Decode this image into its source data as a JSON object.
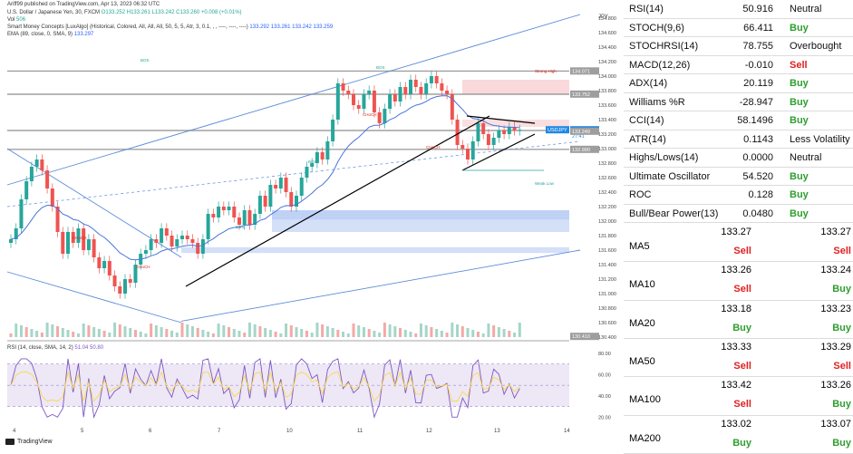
{
  "header": {
    "published": "Ariff99 published on TradingView.com, Apr 13, 2023 06:32 UTC",
    "symbol_line": "U.S. Dollar / Japanese Yen, 30, FXCM",
    "ohlc": "O133.252 H133.261 L133.242 C133.260 +0.008 (+0.01%)",
    "vol_label": "Vol",
    "vol_value": "506",
    "smc_line": "Smart Money Concepts [LuxAlgo] (Historical, Colored, All, All, All, 50, 5, 5, Atr, 3, 0.1, , , ----, ----, ----)",
    "smc_values": "133.292  133.261  133.242  133.259",
    "ema_line": "EMA (89, close, 0, SMA, 9)",
    "ema_value": "133.297",
    "rsi_line": "RSI (14, close, SMA, 14, 2)",
    "rsi_values": "51.04  50.80",
    "tv_logo": "TradingView",
    "currency": "JPY"
  },
  "chart_data": {
    "type": "candlestick",
    "symbol": "USDJPY",
    "timeframe": "30",
    "x_ticks": [
      "4",
      "5",
      "6",
      "7",
      "10",
      "11",
      "12",
      "13",
      "14"
    ],
    "y_ticks": [
      130.4,
      130.6,
      130.8,
      131.0,
      131.2,
      131.4,
      131.6,
      131.8,
      132.0,
      132.2,
      132.4,
      132.6,
      132.8,
      133.0,
      133.2,
      133.4,
      133.6,
      133.8,
      134.0,
      134.2,
      134.4,
      134.6,
      134.8
    ],
    "ylim": [
      130.4,
      134.9
    ],
    "price_labels": {
      "last_symbol": "USDJPY",
      "last": "133.260",
      "countdown": "27:41",
      "level_high": "134.071",
      "level_mid": "133.752",
      "level_low1": "133.249",
      "level_low2": "132.990",
      "bottom": "130.410"
    },
    "annotations": [
      "BOS",
      "BOS",
      "BOS",
      "BOS",
      "CHoCH",
      "CHoCH",
      "CHoCH",
      "CHoCH",
      "Strong High",
      "Weak Low"
    ],
    "closes": [
      131.75,
      131.9,
      132.3,
      132.55,
      132.75,
      132.85,
      132.7,
      132.45,
      132.2,
      131.85,
      131.55,
      131.85,
      131.7,
      131.9,
      131.6,
      131.75,
      131.5,
      131.35,
      131.45,
      131.25,
      131.1,
      131.0,
      131.2,
      131.15,
      131.4,
      131.55,
      131.6,
      131.75,
      131.7,
      131.9,
      131.8,
      131.65,
      131.75,
      131.8,
      131.75,
      131.7,
      131.55,
      131.75,
      132.1,
      132.05,
      132.2,
      132.15,
      132.2,
      132.05,
      131.95,
      132.15,
      131.95,
      132.1,
      132.35,
      132.2,
      132.5,
      132.45,
      132.6,
      132.4,
      132.2,
      132.35,
      132.6,
      132.75,
      132.8,
      132.95,
      132.85,
      133.1,
      133.4,
      133.9,
      133.8,
      133.75,
      133.6,
      133.55,
      133.75,
      133.8,
      133.5,
      133.35,
      133.55,
      133.75,
      133.65,
      133.85,
      133.75,
      133.95,
      133.85,
      133.75,
      133.9,
      134.0,
      133.9,
      133.8,
      133.75,
      133.4,
      133.05,
      133.0,
      132.85,
      133.1,
      133.35,
      133.2,
      133.05,
      133.15,
      133.25,
      133.2,
      133.3,
      133.25,
      133.26
    ],
    "indicators": [
      {
        "name": "RSI (14, close, SMA, 14, 2)",
        "ylim": [
          10,
          80
        ],
        "y_ticks": [
          20,
          40,
          60,
          80
        ]
      }
    ]
  },
  "indicators": [
    {
      "name": "RSI(14)",
      "value": "50.916",
      "action": "Neutral",
      "status": "neutral"
    },
    {
      "name": "STOCH(9,6)",
      "value": "66.411",
      "action": "Buy",
      "status": "buy"
    },
    {
      "name": "STOCHRSI(14)",
      "value": "78.755",
      "action": "Overbought",
      "status": "neutral"
    },
    {
      "name": "MACD(12,26)",
      "value": "-0.010",
      "action": "Sell",
      "status": "sell"
    },
    {
      "name": "ADX(14)",
      "value": "20.119",
      "action": "Buy",
      "status": "buy"
    },
    {
      "name": "Williams %R",
      "value": "-28.947",
      "action": "Buy",
      "status": "buy"
    },
    {
      "name": "CCI(14)",
      "value": "58.1496",
      "action": "Buy",
      "status": "buy"
    },
    {
      "name": "ATR(14)",
      "value": "0.1143",
      "action": "Less Volatility",
      "status": "neutral"
    },
    {
      "name": "Highs/Lows(14)",
      "value": "0.0000",
      "action": "Neutral",
      "status": "neutral"
    },
    {
      "name": "Ultimate Oscillator",
      "value": "54.520",
      "action": "Buy",
      "status": "buy"
    },
    {
      "name": "ROC",
      "value": "0.128",
      "action": "Buy",
      "status": "buy"
    },
    {
      "name": "Bull/Bear Power(13)",
      "value": "0.0480",
      "action": "Buy",
      "status": "buy"
    }
  ],
  "moving_averages": [
    {
      "name": "MA5",
      "simple": "133.27",
      "simple_action": "Sell",
      "simple_status": "sell",
      "exp": "133.27",
      "exp_action": "Sell",
      "exp_status": "sell"
    },
    {
      "name": "MA10",
      "simple": "133.26",
      "simple_action": "Sell",
      "simple_status": "sell",
      "exp": "133.24",
      "exp_action": "Buy",
      "exp_status": "buy"
    },
    {
      "name": "MA20",
      "simple": "133.18",
      "simple_action": "Buy",
      "simple_status": "buy",
      "exp": "133.23",
      "exp_action": "Buy",
      "exp_status": "buy"
    },
    {
      "name": "MA50",
      "simple": "133.33",
      "simple_action": "Sell",
      "simple_status": "sell",
      "exp": "133.29",
      "exp_action": "Sell",
      "exp_status": "sell"
    },
    {
      "name": "MA100",
      "simple": "133.42",
      "simple_action": "Sell",
      "simple_status": "sell",
      "exp": "133.26",
      "exp_action": "Buy",
      "exp_status": "buy"
    },
    {
      "name": "MA200",
      "simple": "133.02",
      "simple_action": "Buy",
      "simple_status": "buy",
      "exp": "133.07",
      "exp_action": "Buy",
      "exp_status": "buy"
    }
  ],
  "colors": {
    "buy": "#2e9e2e",
    "sell": "#e02020",
    "up_candle": "#26a69a",
    "down_candle": "#ef5350",
    "trendline": "#000000",
    "channel": "#5b8ad8"
  }
}
